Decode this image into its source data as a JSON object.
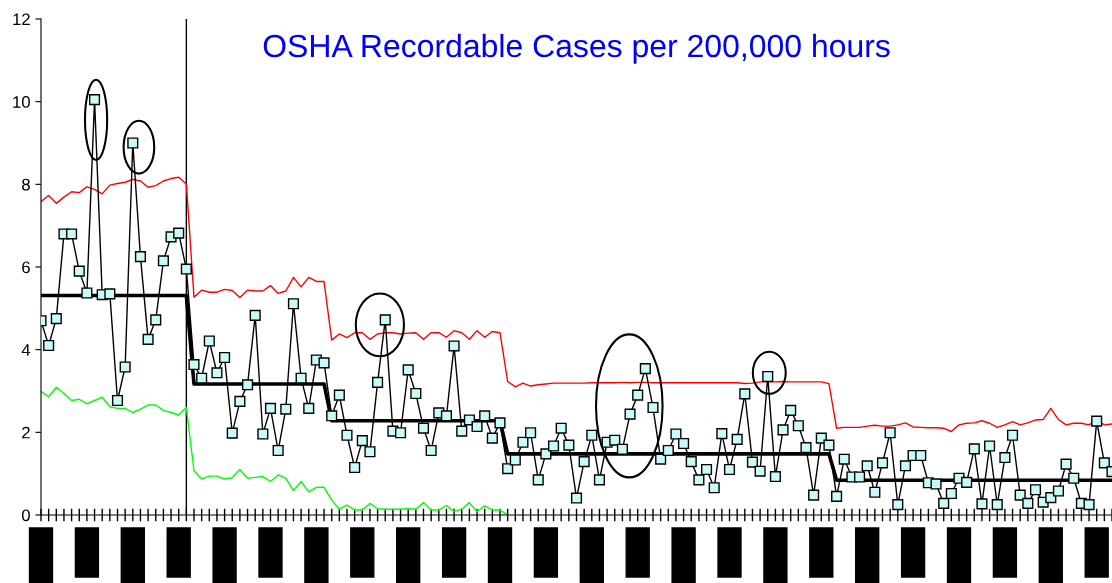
{
  "chart_data": {
    "type": "line",
    "title": "OSHA Recordable Cases per 200,000 hours",
    "categories": [
      null,
      null,
      null,
      null,
      null,
      null,
      null,
      null,
      null,
      null,
      null,
      null,
      null,
      null,
      null,
      null,
      null,
      null,
      null,
      null,
      null,
      null,
      null,
      null,
      null,
      null,
      null,
      null,
      null,
      null,
      null,
      null,
      null,
      null,
      null,
      null,
      null,
      null,
      null,
      null,
      null,
      null,
      null,
      null,
      null,
      null,
      null,
      null,
      null,
      null,
      null,
      null,
      null,
      null,
      null,
      null,
      null,
      null,
      null,
      null,
      null,
      null,
      null,
      null,
      null,
      null,
      null,
      null,
      null,
      null,
      null,
      null,
      null,
      null,
      null,
      null,
      null,
      null,
      null,
      null,
      null,
      null,
      null,
      null,
      null,
      null,
      null,
      null,
      null,
      null,
      null,
      null,
      null,
      null,
      null,
      null,
      null,
      null,
      null,
      null,
      null,
      null,
      null,
      null,
      null,
      null,
      null,
      null,
      null,
      null,
      null,
      null,
      null,
      null,
      null,
      null,
      null,
      null,
      null,
      null,
      null,
      null,
      null,
      null,
      null,
      null,
      null,
      null,
      null,
      null,
      null,
      null,
      null,
      null,
      null,
      null,
      null,
      null,
      null,
      null,
      null
    ],
    "ylim": [
      0,
      12
    ],
    "yticks": [
      0,
      2,
      4,
      6,
      8,
      10,
      12
    ],
    "grid": false,
    "legend": false,
    "series": [
      {
        "color": "#ff0000",
        "marker": "none",
        "values": [
          7.58,
          7.73,
          7.54,
          7.69,
          7.82,
          7.8,
          7.94,
          7.88,
          7.77,
          7.98,
          8.02,
          8.05,
          8.12,
          8.08,
          7.93,
          7.97,
          8.08,
          8.14,
          8.17,
          8.01,
          5.27,
          5.44,
          5.39,
          5.39,
          5.46,
          5.43,
          5.26,
          5.44,
          5.42,
          5.42,
          5.55,
          5.36,
          5.42,
          5.75,
          5.52,
          5.75,
          5.65,
          5.65,
          4.23,
          4.38,
          4.29,
          4.41,
          4.41,
          4.25,
          4.38,
          4.41,
          4.41,
          4.38,
          4.4,
          4.41,
          4.25,
          4.41,
          4.41,
          4.3,
          4.46,
          4.41,
          4.25,
          4.46,
          4.3,
          4.44,
          4.41,
          3.23,
          3.1,
          3.19,
          3.12,
          3.15,
          3.17,
          3.19,
          3.19,
          3.19,
          3.19,
          3.19,
          3.2,
          3.2,
          3.2,
          3.2,
          3.21,
          3.2,
          3.21,
          3.21,
          3.2,
          3.2,
          3.2,
          3.2,
          3.2,
          3.2,
          3.2,
          3.2,
          3.2,
          3.2,
          3.2,
          3.2,
          3.18,
          3.19,
          3.22,
          3.22,
          3.22,
          3.23,
          3.22,
          3.22,
          3.22,
          3.22,
          3.22,
          3.18,
          2.1,
          2.12,
          2.12,
          2.12,
          2.15,
          2.17,
          2.15,
          2.15,
          2.18,
          2.23,
          2.13,
          2.12,
          2.11,
          2.11,
          2.1,
          2.02,
          2.18,
          2.22,
          2.23,
          2.28,
          2.22,
          2.12,
          2.18,
          2.26,
          2.18,
          2.23,
          2.3,
          2.31,
          2.58,
          2.31,
          2.18,
          2.22,
          2.22,
          2.18,
          2.3,
          2.18,
          2.2
        ]
      },
      {
        "color": "#00ff00",
        "marker": "none",
        "values": [
          2.99,
          2.86,
          3.09,
          2.94,
          2.77,
          2.8,
          2.69,
          2.77,
          2.85,
          2.62,
          2.58,
          2.58,
          2.48,
          2.56,
          2.66,
          2.66,
          2.53,
          2.48,
          2.42,
          2.6,
          1.07,
          0.87,
          0.94,
          0.94,
          0.87,
          0.9,
          1.1,
          0.89,
          0.91,
          0.93,
          0.81,
          0.97,
          0.89,
          0.59,
          0.81,
          0.56,
          0.67,
          0.67,
          0.36,
          0.14,
          0.24,
          0.12,
          0.12,
          0.28,
          0.15,
          0.14,
          0.14,
          0.14,
          0.15,
          0.14,
          0.3,
          0.12,
          0.12,
          0.23,
          0.08,
          0.14,
          0.3,
          0.08,
          0.22,
          0.12,
          0.12,
          0,
          null,
          null,
          null,
          null,
          null,
          null,
          null,
          null,
          null,
          null,
          null,
          null,
          null,
          null,
          null,
          null,
          null,
          null,
          null,
          null,
          null,
          null,
          null,
          null,
          null,
          null,
          null,
          null,
          null,
          null,
          null,
          null,
          null,
          null,
          null,
          null,
          null,
          null,
          null,
          null,
          null,
          null,
          null,
          null,
          null,
          null,
          null,
          null,
          null,
          null,
          null,
          null,
          null,
          null,
          null,
          null,
          null,
          null,
          null,
          null,
          null,
          null,
          null,
          null,
          null,
          null,
          null,
          null,
          null,
          null,
          null,
          null,
          null,
          null,
          null,
          null,
          null,
          null,
          null
        ]
      },
      {
        "color": "#000000",
        "marker": "none",
        "values": [
          5.31,
          5.31,
          5.31,
          5.31,
          5.31,
          5.31,
          5.31,
          5.31,
          5.31,
          5.31,
          5.31,
          5.31,
          5.31,
          5.31,
          5.31,
          5.31,
          5.31,
          5.31,
          5.31,
          5.31,
          3.17,
          3.17,
          3.17,
          3.17,
          3.17,
          3.17,
          3.17,
          3.17,
          3.17,
          3.17,
          3.17,
          3.17,
          3.17,
          3.17,
          3.17,
          3.17,
          3.17,
          3.17,
          2.28,
          2.28,
          2.28,
          2.28,
          2.28,
          2.28,
          2.28,
          2.28,
          2.28,
          2.28,
          2.28,
          2.28,
          2.28,
          2.28,
          2.28,
          2.28,
          2.28,
          2.28,
          2.28,
          2.28,
          2.28,
          2.28,
          2.28,
          1.48,
          1.48,
          1.48,
          1.48,
          1.48,
          1.48,
          1.48,
          1.48,
          1.48,
          1.48,
          1.48,
          1.48,
          1.48,
          1.48,
          1.48,
          1.48,
          1.48,
          1.48,
          1.48,
          1.48,
          1.48,
          1.48,
          1.48,
          1.48,
          1.48,
          1.48,
          1.48,
          1.48,
          1.48,
          1.48,
          1.48,
          1.48,
          1.48,
          1.48,
          1.48,
          1.48,
          1.48,
          1.48,
          1.48,
          1.48,
          1.48,
          1.48,
          1.48,
          0.84,
          0.84,
          0.84,
          0.84,
          0.84,
          0.84,
          0.84,
          0.84,
          0.84,
          0.84,
          0.84,
          0.84,
          0.84,
          0.84,
          0.84,
          0.84,
          0.84,
          0.84,
          0.84,
          0.84,
          0.84,
          0.84,
          0.84,
          0.84,
          0.84,
          0.84,
          0.84,
          0.84,
          0.84,
          0.84,
          0.84,
          0.84,
          0.84,
          0.84,
          0.84,
          0.84,
          0.84
        ]
      },
      {
        "color": "#000000",
        "marker": "square",
        "values": [
          4.7,
          4.1,
          4.75,
          6.8,
          6.8,
          5.9,
          5.37,
          10.05,
          5.33,
          5.35,
          2.77,
          3.58,
          9.0,
          6.25,
          4.25,
          4.72,
          6.15,
          6.73,
          6.82,
          5.95,
          3.64,
          3.31,
          4.21,
          3.44,
          3.81,
          1.98,
          2.75,
          3.15,
          4.83,
          1.96,
          2.58,
          1.56,
          2.56,
          5.11,
          3.31,
          2.58,
          3.75,
          3.68,
          2.4,
          2.9,
          1.93,
          1.15,
          1.8,
          1.53,
          3.21,
          4.72,
          2.03,
          1.99,
          3.51,
          2.94,
          2.1,
          1.56,
          2.47,
          2.4,
          4.09,
          2.03,
          2.3,
          2.14,
          2.4,
          1.86,
          2.23,
          1.12,
          1.33,
          1.76,
          1.99,
          0.85,
          1.48,
          1.67,
          2.1,
          1.69,
          0.41,
          1.29,
          1.93,
          0.85,
          1.76,
          1.81,
          1.59,
          2.44,
          2.9,
          3.54,
          2.6,
          1.35,
          1.56,
          1.96,
          1.73,
          1.29,
          0.85,
          1.1,
          0.66,
          1.97,
          1.1,
          1.83,
          2.93,
          1.28,
          1.06,
          3.35,
          0.93,
          2.06,
          2.53,
          2.16,
          1.63,
          0.48,
          1.86,
          1.69,
          0.45,
          1.35,
          0.92,
          0.92,
          1.19,
          0.55,
          1.26,
          1.99,
          0.25,
          1.19,
          1.44,
          1.44,
          0.78,
          0.75,
          0.28,
          0.52,
          0.89,
          0.79,
          1.6,
          0.27,
          1.67,
          0.25,
          1.39,
          1.93,
          0.48,
          0.28,
          0.61,
          0.31,
          0.42,
          0.58,
          1.23,
          0.89,
          0.28,
          0.25,
          2.27,
          1.26,
          1.05
        ]
      }
    ]
  }
}
